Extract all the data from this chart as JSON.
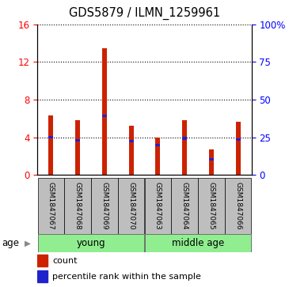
{
  "title": "GDS5879 / ILMN_1259961",
  "samples": [
    "GSM1847067",
    "GSM1847068",
    "GSM1847069",
    "GSM1847070",
    "GSM1847063",
    "GSM1847064",
    "GSM1847065",
    "GSM1847066"
  ],
  "red_values": [
    6.3,
    5.8,
    13.5,
    5.2,
    4.0,
    5.8,
    2.7,
    5.7
  ],
  "blue_values": [
    4.0,
    3.7,
    6.3,
    3.6,
    3.2,
    3.9,
    1.7,
    3.8
  ],
  "left_ylim": [
    0,
    16
  ],
  "right_ylim": [
    0,
    100
  ],
  "left_yticks": [
    0,
    4,
    8,
    12,
    16
  ],
  "right_yticks": [
    0,
    25,
    50,
    75,
    100
  ],
  "right_yticklabels": [
    "0",
    "25",
    "50",
    "75",
    "100%"
  ],
  "groups": [
    {
      "label": "young",
      "indices": [
        0,
        1,
        2,
        3
      ]
    },
    {
      "label": "middle age",
      "indices": [
        4,
        5,
        6,
        7
      ]
    }
  ],
  "age_label": "age",
  "legend_red": "count",
  "legend_blue": "percentile rank within the sample",
  "bar_color": "#CC2200",
  "blue_color": "#2222CC",
  "tick_label_box_color": "#BEBEBE",
  "group_box_color": "#90EE90",
  "bar_width": 0.18,
  "blue_bar_width": 0.18,
  "blue_bar_height": 0.28
}
